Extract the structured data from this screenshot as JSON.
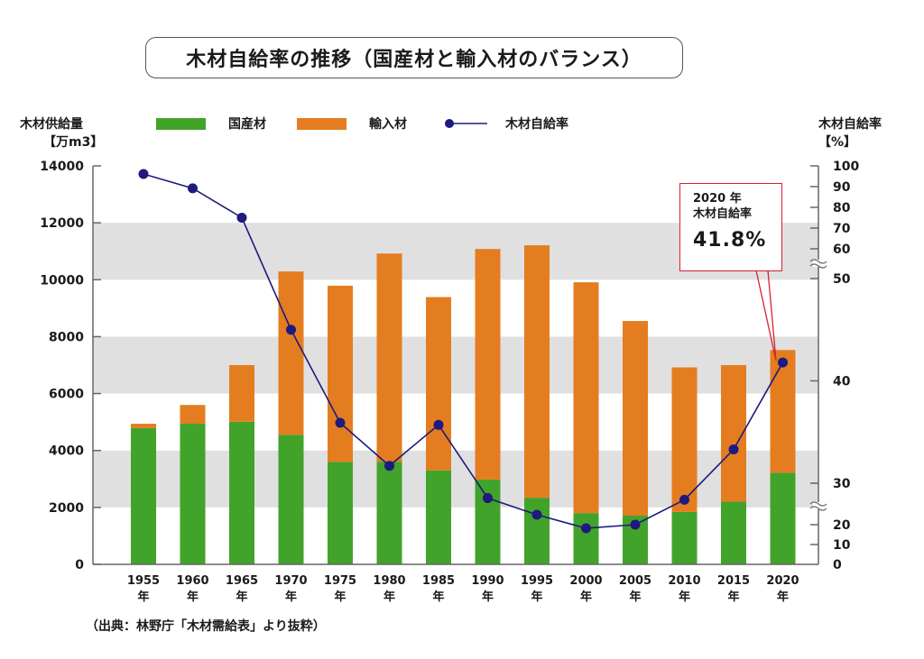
{
  "title": "木材自給率の推移（国産材と輸入材のバランス）",
  "left_axis_title": [
    "木材供給量",
    "【万m3】"
  ],
  "right_axis_title": [
    "木材自給率",
    "【%】"
  ],
  "legend": [
    {
      "label": "国産材",
      "color": "#42a32a",
      "kind": "bar"
    },
    {
      "label": "輸入材",
      "color": "#e47d20",
      "kind": "bar"
    },
    {
      "label": "木材自給率",
      "color": "#1e1a7e",
      "kind": "line"
    }
  ],
  "callout": {
    "line1": "2020 年",
    "line2": "木材自給率",
    "value": "41.8%"
  },
  "source": "（出典：林野庁「木材需給表」より抜粋）",
  "year_suffix": "年",
  "chart_data": {
    "type": "bar",
    "title": "木材自給率の推移（国産材と輸入材のバランス）",
    "stacked": true,
    "categories": [
      "1955",
      "1960",
      "1965",
      "1970",
      "1975",
      "1980",
      "1985",
      "1990",
      "1995",
      "2000",
      "2005",
      "2010",
      "2015",
      "2020"
    ],
    "series": [
      {
        "name": "国産材",
        "axis": "left",
        "type": "bar",
        "color": "#42a32a",
        "values": [
          4790,
          4940,
          5010,
          4550,
          3600,
          3600,
          3300,
          2980,
          2340,
          1800,
          1710,
          1840,
          2200,
          3220
        ]
      },
      {
        "name": "輸入材",
        "axis": "left",
        "type": "bar",
        "color": "#e47d20",
        "values": [
          150,
          660,
          1990,
          5740,
          6190,
          7320,
          6090,
          8100,
          8870,
          8110,
          6840,
          5080,
          4800,
          4310
        ]
      },
      {
        "name": "木材自給率",
        "axis": "right",
        "type": "line",
        "color": "#1e1a7e",
        "values": [
          96.1,
          89.2,
          75.0,
          45.0,
          35.9,
          31.7,
          35.7,
          26.4,
          22.4,
          18.2,
          20.0,
          26.0,
          33.3,
          41.8
        ]
      }
    ],
    "ylabel": "木材供給量【万m3】",
    "ylim": [
      0,
      14000
    ],
    "yticks": [
      "0",
      "2000",
      "4000",
      "6000",
      "8000",
      "10000",
      "12000",
      "14000"
    ],
    "y2label": "木材自給率【%】",
    "y2_broken_axis": true,
    "y2_segments": [
      [
        0,
        20
      ],
      [
        30,
        50
      ],
      [
        60,
        100
      ]
    ],
    "y2ticks": [
      "0",
      "10",
      "20",
      "30",
      "40",
      "50",
      "60",
      "70",
      "80",
      "90",
      "100"
    ],
    "grid": "alternating horizontal bands",
    "legend_position": "top"
  }
}
